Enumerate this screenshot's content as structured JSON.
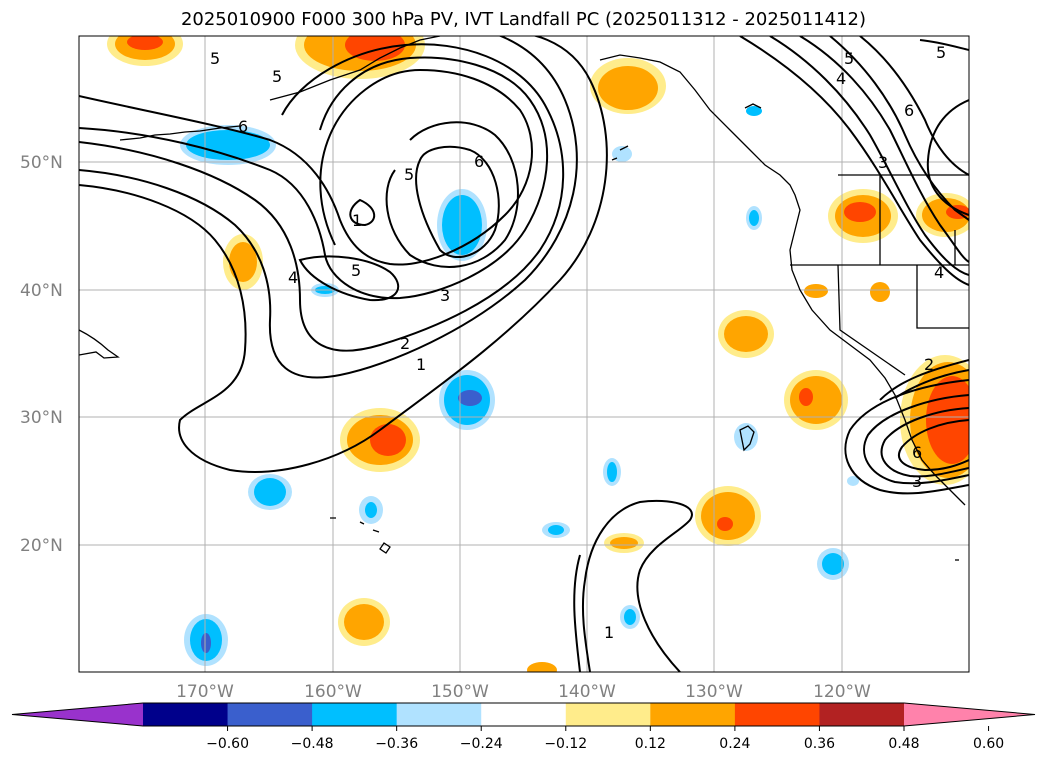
{
  "title": "2025010900 F000 300 hPa PV, IVT Landfall PC (2025011312 - 2025011412)",
  "lat_labels": [
    "50°N",
    "40°N",
    "30°N",
    "20°N"
  ],
  "lon_labels": [
    "170°W",
    "160°W",
    "150°W",
    "140°W",
    "130°W",
    "120°W"
  ],
  "contour_labels": [
    "5",
    "5",
    "6",
    "5",
    "6",
    "1",
    "5",
    "4",
    "3",
    "2",
    "1",
    "5",
    "4",
    "6",
    "3",
    "4",
    "2",
    "6",
    "3",
    "1"
  ],
  "colorbar": {
    "colors": [
      "#9932cc",
      "#00008b",
      "#3a5fcd",
      "#00bfff",
      "#b0e2ff",
      "#ffffff",
      "#ffec8b",
      "#ffa500",
      "#ff4500",
      "#b22222",
      "#ff82ab"
    ],
    "tick_labels": [
      "−0.60",
      "−0.48",
      "−0.36",
      "−0.24",
      "−0.12",
      "0.12",
      "0.24",
      "0.36",
      "0.48",
      "0.60"
    ],
    "extend": "both"
  },
  "map": {
    "projection": "PlateCarree-like",
    "lon_range": [
      "180°W",
      "110°W"
    ],
    "lat_range": [
      "10°N",
      "60°N"
    ],
    "gridlines": true
  }
}
